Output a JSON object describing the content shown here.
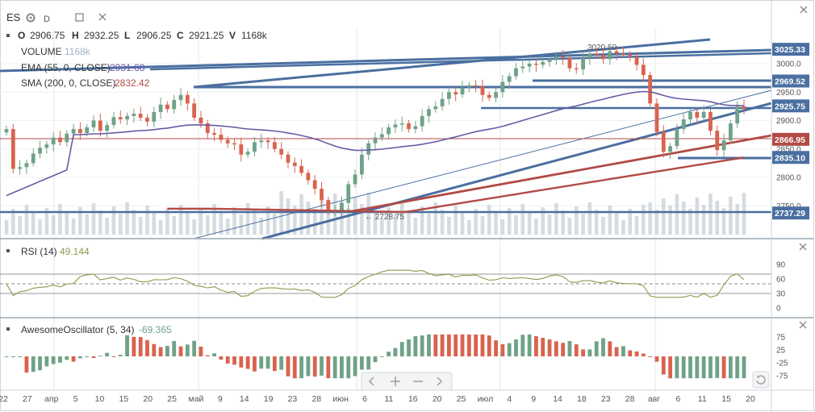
{
  "toolbar": {
    "symbol": "ES",
    "interval": "D"
  },
  "ohlc": {
    "o_label": "O",
    "o": "2906.75",
    "h_label": "H",
    "h": "2932.25",
    "l_label": "L",
    "l": "2906.25",
    "c_label": "C",
    "c": "2921.25",
    "v_label": "V",
    "v": "1168k"
  },
  "legend": {
    "volume_label": "VOLUME",
    "volume_value": "1168k",
    "ema_label": "EMA (55, 0, CLOSE)",
    "ema_value": "2931.68",
    "sma_label": "SMA (200, 0, CLOSE)",
    "sma_value": "2832.42",
    "rsi_label": "RSI (14)",
    "rsi_value": "49.144",
    "ao_label": "AwesomeOscillator (5, 34)",
    "ao_value": "-69.365"
  },
  "colors": {
    "up": "#6fa287",
    "down": "#d9634e",
    "ema": "#6a5aa5",
    "sma": "#b24a45",
    "trend": "#4a6fa0",
    "volume": "#c8cfd6",
    "rsi": "#8c9a4a",
    "tag_blue": "#4a6fa0",
    "tag_red": "#b24a45"
  },
  "chart_data": {
    "type": "candlestick",
    "price_axis": {
      "ticks": [
        "3000.0",
        "2950.0",
        "2900.0",
        "2850.0",
        "2800.0",
        "2750.0"
      ]
    },
    "price_tags": [
      {
        "text": "3025.33",
        "color": "blue",
        "value": 3025.33
      },
      {
        "text": "2969.52",
        "color": "blue",
        "value": 2969.52
      },
      {
        "text": "2925.75",
        "color": "blue",
        "value": 2925.75
      },
      {
        "text": "2866.95",
        "color": "red",
        "value": 2866.95
      },
      {
        "text": "2835.10",
        "color": "blue",
        "value": 2835.1
      },
      {
        "text": "2737.29",
        "color": "blue",
        "value": 2737.29
      }
    ],
    "annotations": [
      {
        "text": "2728.75",
        "value": 2728.75
      },
      {
        "text": "3020.50",
        "value": 3020.5
      }
    ],
    "x_ticks": [
      "22",
      "27",
      "апр",
      "5",
      "10",
      "15",
      "20",
      "25",
      "май",
      "9",
      "14",
      "19",
      "23",
      "28",
      "июн",
      "6",
      "11",
      "16",
      "20",
      "25",
      "июл",
      "4",
      "9",
      "14",
      "18",
      "23",
      "28",
      "авг",
      "6",
      "11",
      "15",
      "20"
    ],
    "rsi": {
      "ticks": [
        "90",
        "60",
        "30",
        "0"
      ],
      "overbought": 70,
      "oversold": 30,
      "mid": 50
    },
    "ao": {
      "ticks": [
        "75",
        "25",
        "-25",
        "-75"
      ]
    },
    "close": [
      2885,
      2815,
      2818,
      2825,
      2842,
      2852,
      2858,
      2870,
      2862,
      2877,
      2885,
      2878,
      2888,
      2900,
      2882,
      2892,
      2906,
      2902,
      2908,
      2912,
      2905,
      2898,
      2915,
      2928,
      2920,
      2936,
      2945,
      2930,
      2905,
      2895,
      2878,
      2875,
      2866,
      2860,
      2858,
      2840,
      2845,
      2862,
      2865,
      2862,
      2850,
      2840,
      2826,
      2820,
      2808,
      2795,
      2780,
      2760,
      2740,
      2742,
      2755,
      2788,
      2805,
      2840,
      2860,
      2870,
      2876,
      2888,
      2893,
      2895,
      2885,
      2890,
      2908,
      2920,
      2925,
      2938,
      2950,
      2946,
      2958,
      2962,
      2960,
      2945,
      2940,
      2950,
      2968,
      2978,
      2992,
      2995,
      3000,
      2998,
      3003,
      3008,
      3012,
      3010,
      2992,
      2990,
      3010,
      3018,
      3015,
      3008,
      3022,
      3018,
      3016,
      3012,
      2998,
      2980,
      2930,
      2880,
      2845,
      2855,
      2885,
      2902,
      2915,
      2905,
      2915,
      2882,
      2848,
      2865,
      2895,
      2925,
      2921
    ]
  }
}
